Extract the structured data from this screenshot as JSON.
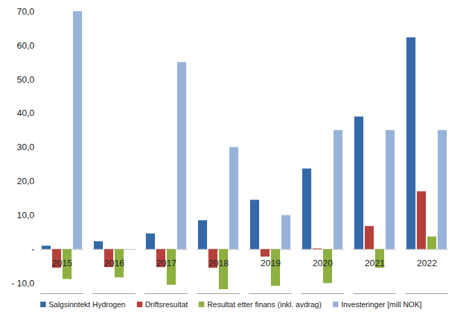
{
  "chart_data": {
    "type": "bar",
    "categories": [
      "2015",
      "2016",
      "2017",
      "2018",
      "2019",
      "2020",
      "2021",
      "2022"
    ],
    "series": [
      {
        "name": "Salgsinntekt Hydrogen",
        "color": "#3568a8",
        "values": [
          1.0,
          2.3,
          4.6,
          8.5,
          14.5,
          23.7,
          39.0,
          62.3
        ]
      },
      {
        "name": "Driftsresultat",
        "color": "#b6413c",
        "values": [
          -5.5,
          -5.3,
          -5.3,
          -5.5,
          -2.2,
          0.2,
          6.8,
          17.0
        ]
      },
      {
        "name": "Resultat etter finans (inkl. avdrag)",
        "color": "#8db040",
        "values": [
          -8.8,
          -8.3,
          -10.5,
          -11.8,
          -10.8,
          -10.0,
          -5.5,
          3.7
        ]
      },
      {
        "name": "Investeringer [mill NOK]",
        "color": "#98b3da",
        "values": [
          70.0,
          0,
          55.0,
          30.0,
          10.0,
          35.0,
          35.0,
          35.0
        ]
      }
    ],
    "ylim": [
      -13,
      70
    ],
    "yticks": [
      {
        "value": -10,
        "label": "- 10,0"
      },
      {
        "value": 0,
        "label": "-"
      },
      {
        "value": 10,
        "label": "10,0"
      },
      {
        "value": 20,
        "label": "20,0"
      },
      {
        "value": 30,
        "label": "30,0"
      },
      {
        "value": 40,
        "label": "40,0"
      },
      {
        "value": 50,
        "label": "50,0"
      },
      {
        "value": 60,
        "label": "60,0"
      },
      {
        "value": 70,
        "label": "70,0"
      }
    ],
    "legend": "bottom",
    "grid": false
  }
}
